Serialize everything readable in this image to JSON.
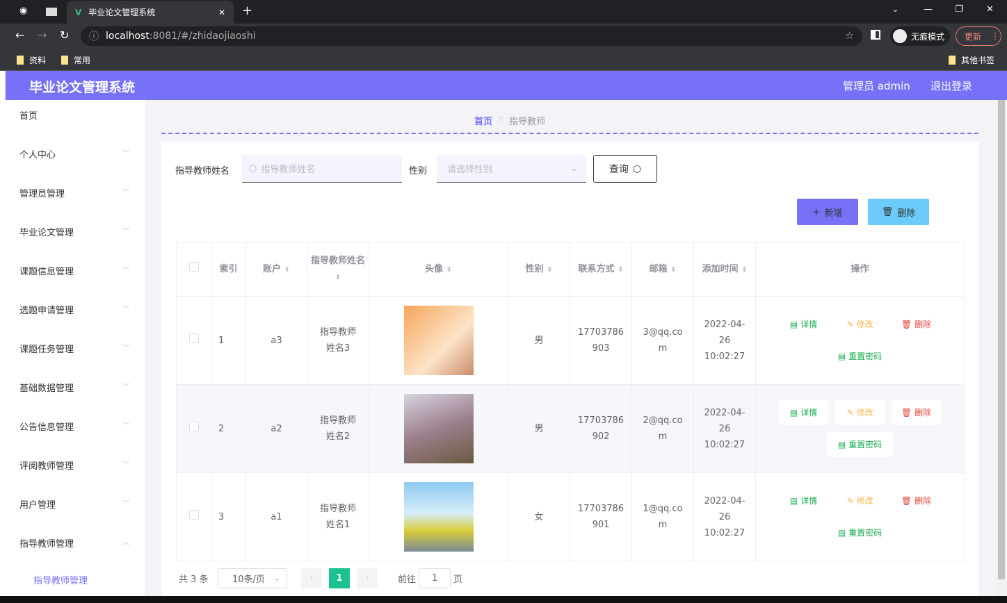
{
  "browser": {
    "tab_title": "毕业论文管理系统",
    "url_host": "localhost",
    "url_rest": ":8081/#/zhidaojiaoshi",
    "bookmarks": [
      "资料",
      "常用"
    ],
    "other_bookmarks": "其他书签",
    "incognito": "无痕模式",
    "update": "更新"
  },
  "header": {
    "title": "毕业论文管理系统",
    "user": "管理员 admin",
    "logout": "退出登录",
    "color": "#7671f7"
  },
  "sidebar": {
    "items": [
      "首页",
      "个人中心",
      "管理员管理",
      "毕业论文管理",
      "课题信息管理",
      "选题申请管理",
      "课题任务管理",
      "基础数据管理",
      "公告信息管理",
      "评阅教师管理",
      "用户管理",
      "指导教师管理"
    ],
    "sub_item": "指导教师管理"
  },
  "breadcrumb": {
    "home": "首页",
    "current": "指导教师"
  },
  "search": {
    "name_label": "指导教师姓名",
    "name_placeholder": "指导教师姓名",
    "gender_label": "性别",
    "gender_placeholder": "请选择性别",
    "query": "查询"
  },
  "actions": {
    "add": "新增",
    "delete": "删除"
  },
  "table": {
    "headers": [
      "索引",
      "账户",
      "指导教师姓名",
      "头像",
      "性别",
      "联系方式",
      "邮箱",
      "添加时间",
      "操作"
    ],
    "rows": [
      {
        "index": "1",
        "account": "a3",
        "name": "指导教师姓名3",
        "gender": "男",
        "phone": "17703786903",
        "email": "3@qq.com",
        "time": "2022-04-26 10:02:27"
      },
      {
        "index": "2",
        "account": "a2",
        "name": "指导教师姓名2",
        "gender": "男",
        "phone": "17703786902",
        "email": "2@qq.com",
        "time": "2022-04-26 10:02:27"
      },
      {
        "index": "3",
        "account": "a1",
        "name": "指导教师姓名1",
        "gender": "女",
        "phone": "17703786901",
        "email": "1@qq.com",
        "time": "2022-04-26 10:02:27"
      }
    ],
    "ops": {
      "detail": "详情",
      "edit": "修改",
      "delete": "删除",
      "reset": "重置密码"
    }
  },
  "pagination": {
    "total": "共 3 条",
    "page_size": "10条/页",
    "current": "1",
    "goto": "前往",
    "goto_value": "1",
    "page_suffix": "页"
  }
}
